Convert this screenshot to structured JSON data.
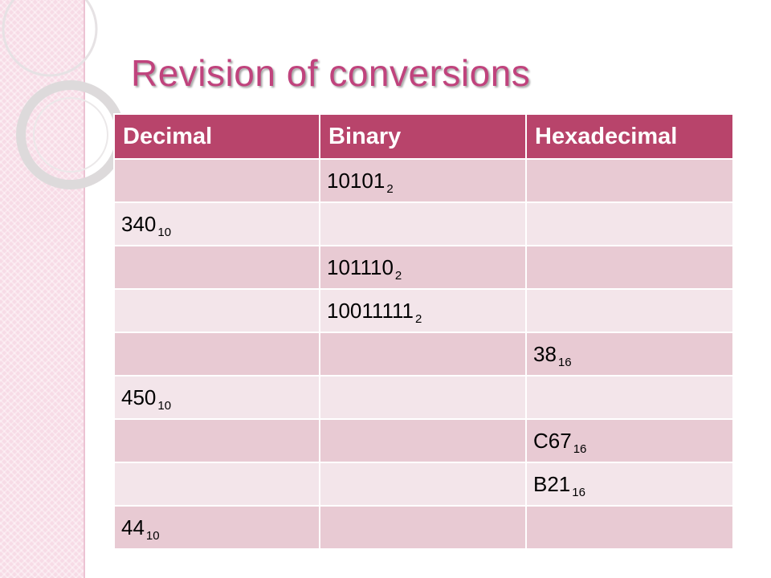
{
  "title": "Revision of conversions",
  "table": {
    "headers": [
      "Decimal",
      "Binary",
      "Hexadecimal"
    ],
    "rows": [
      [
        null,
        {
          "v": "10101",
          "b": "2"
        },
        null
      ],
      [
        {
          "v": "340",
          "b": "10"
        },
        null,
        null
      ],
      [
        null,
        {
          "v": "101110",
          "b": "2"
        },
        null
      ],
      [
        null,
        {
          "v": "10011111",
          "b": "2"
        },
        null
      ],
      [
        null,
        null,
        {
          "v": "38",
          "b": "16"
        }
      ],
      [
        {
          "v": "450",
          "b": "10"
        },
        null,
        null
      ],
      [
        null,
        null,
        {
          "v": "C67",
          "b": "16"
        }
      ],
      [
        null,
        null,
        {
          "v": "B21",
          "b": "16"
        }
      ],
      [
        {
          "v": "44",
          "b": "10"
        },
        null,
        null
      ]
    ]
  },
  "colors": {
    "header_bg": "#b8446b",
    "row_dark": "#e8cad3",
    "row_light": "#f3e5ea",
    "title": "#c0437d",
    "side_band": "#f7dbe6"
  }
}
